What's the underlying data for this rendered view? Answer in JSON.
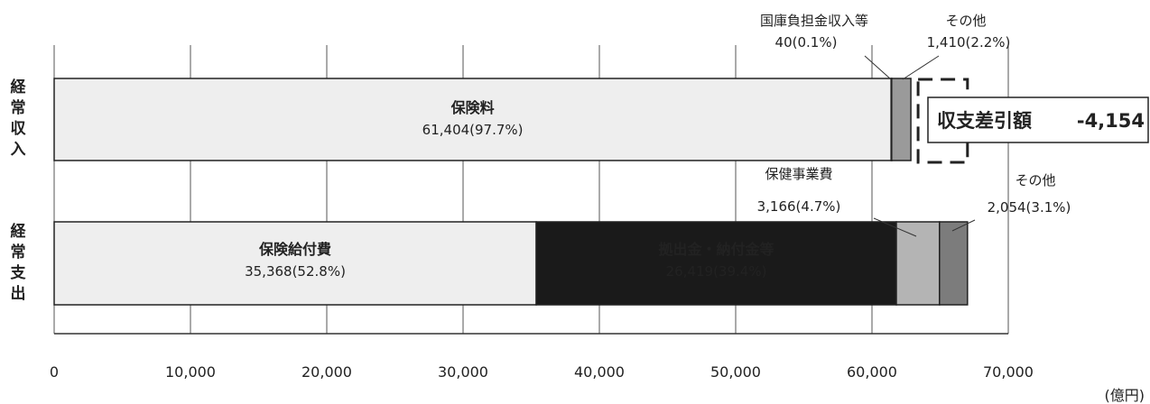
{
  "chart_data": {
    "type": "bar",
    "orientation": "horizontal",
    "stacked": true,
    "unit": "(億円)",
    "xlim": [
      0,
      70000
    ],
    "x_ticks": [
      "0",
      "10,000",
      "20,000",
      "30,000",
      "40,000",
      "50,000",
      "60,000",
      "70,000"
    ],
    "grid": true,
    "categories": [
      {
        "label": "経常収入",
        "label_chars": [
          "経",
          "常",
          "収",
          "入"
        ]
      },
      {
        "label": "経常支出",
        "label_chars": [
          "経",
          "常",
          "支",
          "出"
        ]
      }
    ],
    "rows": [
      {
        "category": "経常収入",
        "segments": [
          {
            "name": "保険料",
            "value": 61404,
            "value_text": "61,404(97.7%)",
            "color": "#eeeeee",
            "inside": true
          },
          {
            "name": "国庫負担金収入等",
            "value": 40,
            "value_text": "40(0.1%)",
            "color": "#cfcfcf",
            "inside": false
          },
          {
            "name": "その他",
            "value": 1410,
            "value_text": "1,410(2.2%)",
            "color": "#9a9a9a",
            "inside": false
          }
        ]
      },
      {
        "category": "経常支出",
        "segments": [
          {
            "name": "保険給付費",
            "value": 35368,
            "value_text": "35,368(52.8%)",
            "color": "#eeeeee",
            "inside": true
          },
          {
            "name": "拠出金・納付金等",
            "value": 26419,
            "value_text": "26,419(39.4%)",
            "color": "#1a1a1a",
            "inside": true,
            "text_color": "#ffffff"
          },
          {
            "name": "保健事業費",
            "value": 3166,
            "value_text": "3,166(4.7%)",
            "color": "#b4b4b4",
            "inside": false
          },
          {
            "name": "その他",
            "value": 2054,
            "value_text": "2,054(3.1%)",
            "color": "#7c7c7c",
            "inside": false
          }
        ]
      }
    ],
    "annotation": {
      "label": "収支差引額",
      "value": "-4,154"
    }
  }
}
